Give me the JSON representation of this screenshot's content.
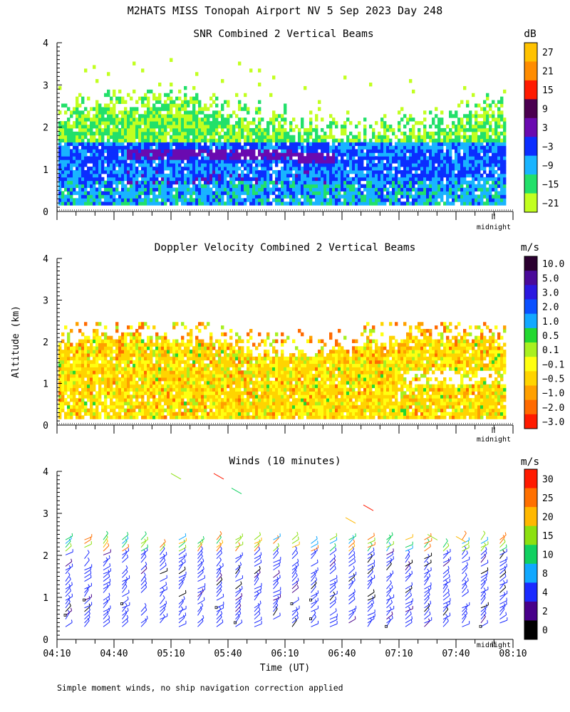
{
  "title": "M2HATS MISS Tonopah Airport NV   5 Sep 2023 Day 248",
  "y_axis_title": "Altitude (km)",
  "x_axis_title": "Time (UT)",
  "footnote": "Simple moment winds, no ship navigation correction applied",
  "midnight_label": "midnight",
  "chart_data": [
    {
      "type": "heatmap",
      "title": "SNR Combined 2 Vertical Beams",
      "units": "dB",
      "ylim": [
        0,
        4
      ],
      "y_ticks": [
        "0",
        "1",
        "2",
        "3",
        "4"
      ],
      "x_range_min": [
        0,
        240
      ],
      "colorbar": {
        "labels": [
          "27",
          "21",
          "15",
          "9",
          "3",
          "−3",
          "−9",
          "−15",
          "−21"
        ],
        "colors": [
          "#ffc200",
          "#ff8c00",
          "#ff1a00",
          "#4b0050",
          "#6a0ab0",
          "#0b2eff",
          "#19b4ff",
          "#22e06a",
          "#c2ff20"
        ]
      },
      "bands": [
        {
          "from_km": 0.15,
          "to_km": 0.7,
          "value_class": "−9 to −3"
        },
        {
          "from_km": 0.7,
          "to_km": 1.5,
          "value_class": "−3 to 3"
        },
        {
          "from_km": 1.5,
          "to_km": 2.2,
          "value_class": "−15 to −9"
        }
      ]
    },
    {
      "type": "heatmap",
      "title": "Doppler Velocity Combined 2 Vertical Beams",
      "units": "m/s",
      "ylim": [
        0,
        4
      ],
      "y_ticks": [
        "0",
        "1",
        "2",
        "3",
        "4"
      ],
      "colorbar": {
        "labels": [
          "10.0",
          "5.0",
          "3.0",
          "2.0",
          "1.0",
          "0.5",
          "0.1",
          "−0.1",
          "−0.5",
          "−1.0",
          "−2.0",
          "−3.0"
        ],
        "colors": [
          "#2a0030",
          "#4a0a9a",
          "#2a18e0",
          "#0a50ff",
          "#12a8ff",
          "#22d830",
          "#a8f020",
          "#ffff10",
          "#ffd400",
          "#ffa000",
          "#ff6a00",
          "#ff1a00"
        ]
      },
      "bands": [
        {
          "from_km": 0.15,
          "to_km": 1.8,
          "value_class": "−0.5 to −0.1"
        }
      ]
    },
    {
      "type": "barbs",
      "title": "Winds (10 minutes)",
      "units": "m/s",
      "ylim": [
        0,
        4
      ],
      "y_ticks": [
        "0",
        "1",
        "2",
        "3",
        "4"
      ],
      "x_ticks": [
        "04:10",
        "04:40",
        "05:10",
        "05:40",
        "06:10",
        "06:40",
        "07:10",
        "07:40",
        "08:10"
      ],
      "colorbar": {
        "labels": [
          "30",
          "25",
          "20",
          "15",
          "10",
          "8",
          "4",
          "2",
          "0"
        ],
        "colors": [
          "#ff1a00",
          "#ff7000",
          "#ffb800",
          "#8ce010",
          "#10d060",
          "#10a8ff",
          "#1a2aff",
          "#48008a",
          "#000000"
        ]
      }
    }
  ]
}
